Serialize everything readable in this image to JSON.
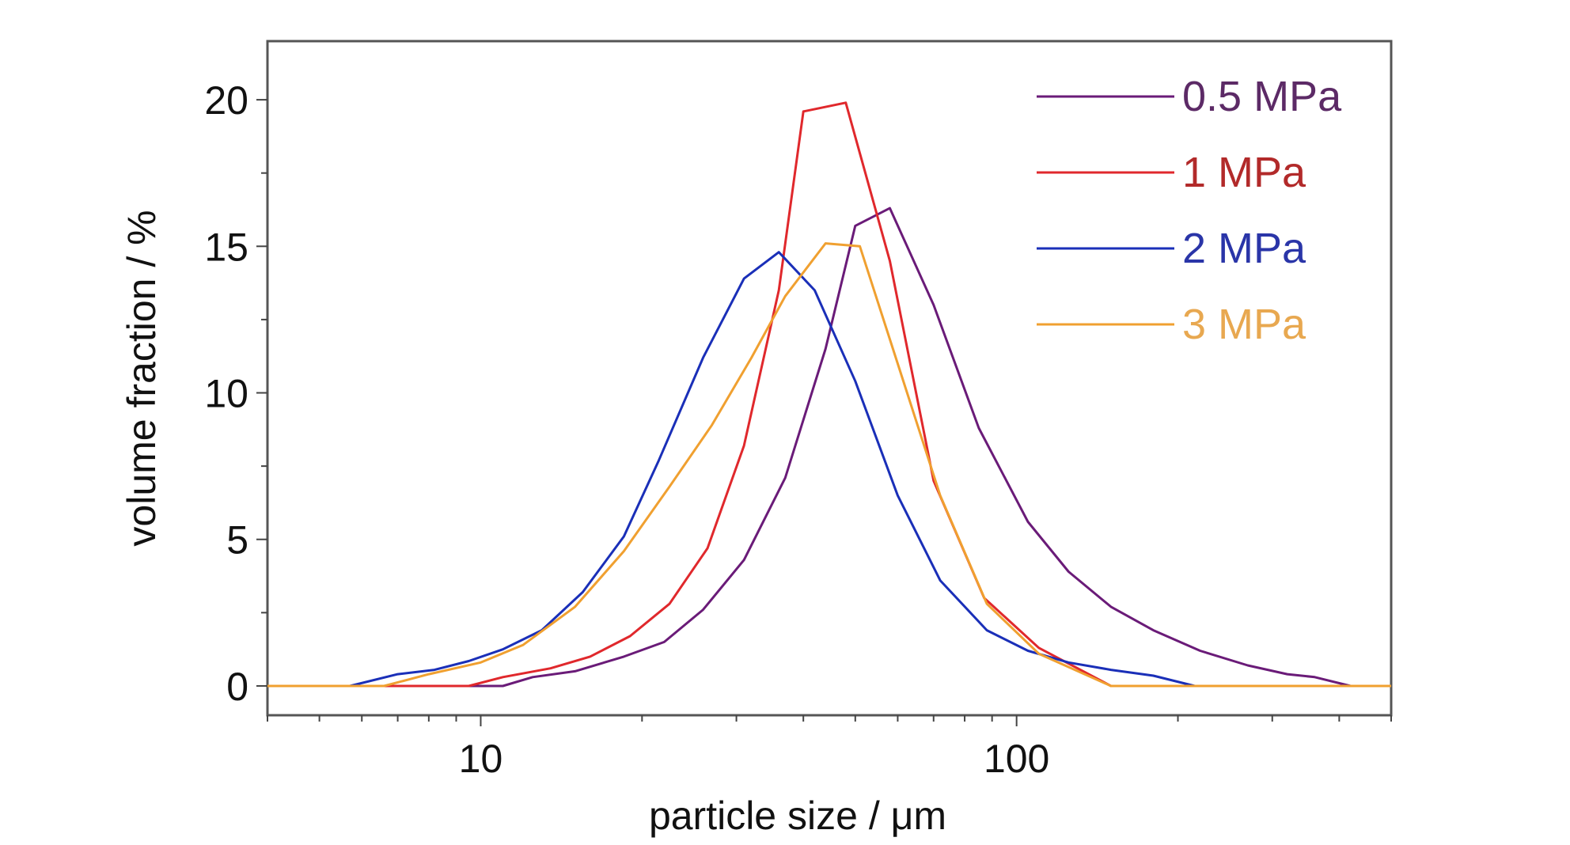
{
  "chart_data": {
    "type": "line",
    "xlabel": "particle size / μm",
    "ylabel": "volume fraction / %",
    "xscale": "log",
    "xlim": [
      4,
      500
    ],
    "ylim": [
      -1,
      22
    ],
    "xticks": [
      10,
      100
    ],
    "xtick_labels": [
      "10",
      "100"
    ],
    "yticks": [
      0,
      5,
      10,
      15,
      20
    ],
    "ytick_labels": [
      "0",
      "5",
      "10",
      "15",
      "20"
    ],
    "grid": false,
    "legend": "top-right",
    "series": [
      {
        "name": "0.5 MPa",
        "color": "#6a1b78",
        "label_color": "#5c2a66",
        "points": [
          [
            4,
            0
          ],
          [
            11,
            0
          ],
          [
            12.5,
            0.3
          ],
          [
            15,
            0.5
          ],
          [
            18.5,
            1
          ],
          [
            22,
            1.5
          ],
          [
            26,
            2.6
          ],
          [
            31,
            4.3
          ],
          [
            37,
            7.1
          ],
          [
            44,
            11.5
          ],
          [
            50,
            15.7
          ],
          [
            58,
            16.3
          ],
          [
            70,
            13
          ],
          [
            85,
            8.8
          ],
          [
            105,
            5.6
          ],
          [
            125,
            3.9
          ],
          [
            150,
            2.7
          ],
          [
            180,
            1.9
          ],
          [
            220,
            1.2
          ],
          [
            270,
            0.7
          ],
          [
            320,
            0.4
          ],
          [
            360,
            0.3
          ],
          [
            420,
            0
          ],
          [
            500,
            0
          ]
        ]
      },
      {
        "name": "1 MPa",
        "color": "#e0282c",
        "label_color": "#b22a2a",
        "points": [
          [
            4,
            0
          ],
          [
            9.5,
            0
          ],
          [
            11,
            0.3
          ],
          [
            13.5,
            0.6
          ],
          [
            16,
            1
          ],
          [
            19,
            1.7
          ],
          [
            22.5,
            2.8
          ],
          [
            26.5,
            4.7
          ],
          [
            31,
            8.2
          ],
          [
            36,
            13.5
          ],
          [
            40,
            19.6
          ],
          [
            48,
            19.9
          ],
          [
            58,
            14.5
          ],
          [
            70,
            7
          ],
          [
            87,
            3
          ],
          [
            110,
            1.3
          ],
          [
            150,
            0
          ],
          [
            500,
            0
          ]
        ]
      },
      {
        "name": "2 MPa",
        "color": "#1a2fb8",
        "label_color": "#2a35a8",
        "points": [
          [
            4,
            0
          ],
          [
            5.7,
            0
          ],
          [
            7,
            0.4
          ],
          [
            8.2,
            0.55
          ],
          [
            9.5,
            0.85
          ],
          [
            11,
            1.25
          ],
          [
            13,
            1.9
          ],
          [
            15.5,
            3.2
          ],
          [
            18.5,
            5.1
          ],
          [
            21.5,
            7.7
          ],
          [
            26,
            11.2
          ],
          [
            31,
            13.9
          ],
          [
            36,
            14.8
          ],
          [
            42,
            13.5
          ],
          [
            50,
            10.4
          ],
          [
            60,
            6.5
          ],
          [
            72,
            3.6
          ],
          [
            88,
            1.9
          ],
          [
            105,
            1.2
          ],
          [
            125,
            0.8
          ],
          [
            150,
            0.55
          ],
          [
            180,
            0.35
          ],
          [
            215,
            0
          ],
          [
            500,
            0
          ]
        ]
      },
      {
        "name": "3 MPa",
        "color": "#f0a030",
        "label_color": "#e8a850",
        "points": [
          [
            4,
            0
          ],
          [
            6.6,
            0
          ],
          [
            8,
            0.4
          ],
          [
            10,
            0.8
          ],
          [
            12,
            1.4
          ],
          [
            15,
            2.7
          ],
          [
            18.5,
            4.6
          ],
          [
            22.5,
            6.8
          ],
          [
            27,
            8.9
          ],
          [
            32,
            11.2
          ],
          [
            37,
            13.3
          ],
          [
            44,
            15.1
          ],
          [
            51,
            15
          ],
          [
            60,
            11
          ],
          [
            72,
            6.5
          ],
          [
            88,
            2.8
          ],
          [
            110,
            1.1
          ],
          [
            150,
            0
          ],
          [
            500,
            0
          ]
        ]
      }
    ]
  }
}
